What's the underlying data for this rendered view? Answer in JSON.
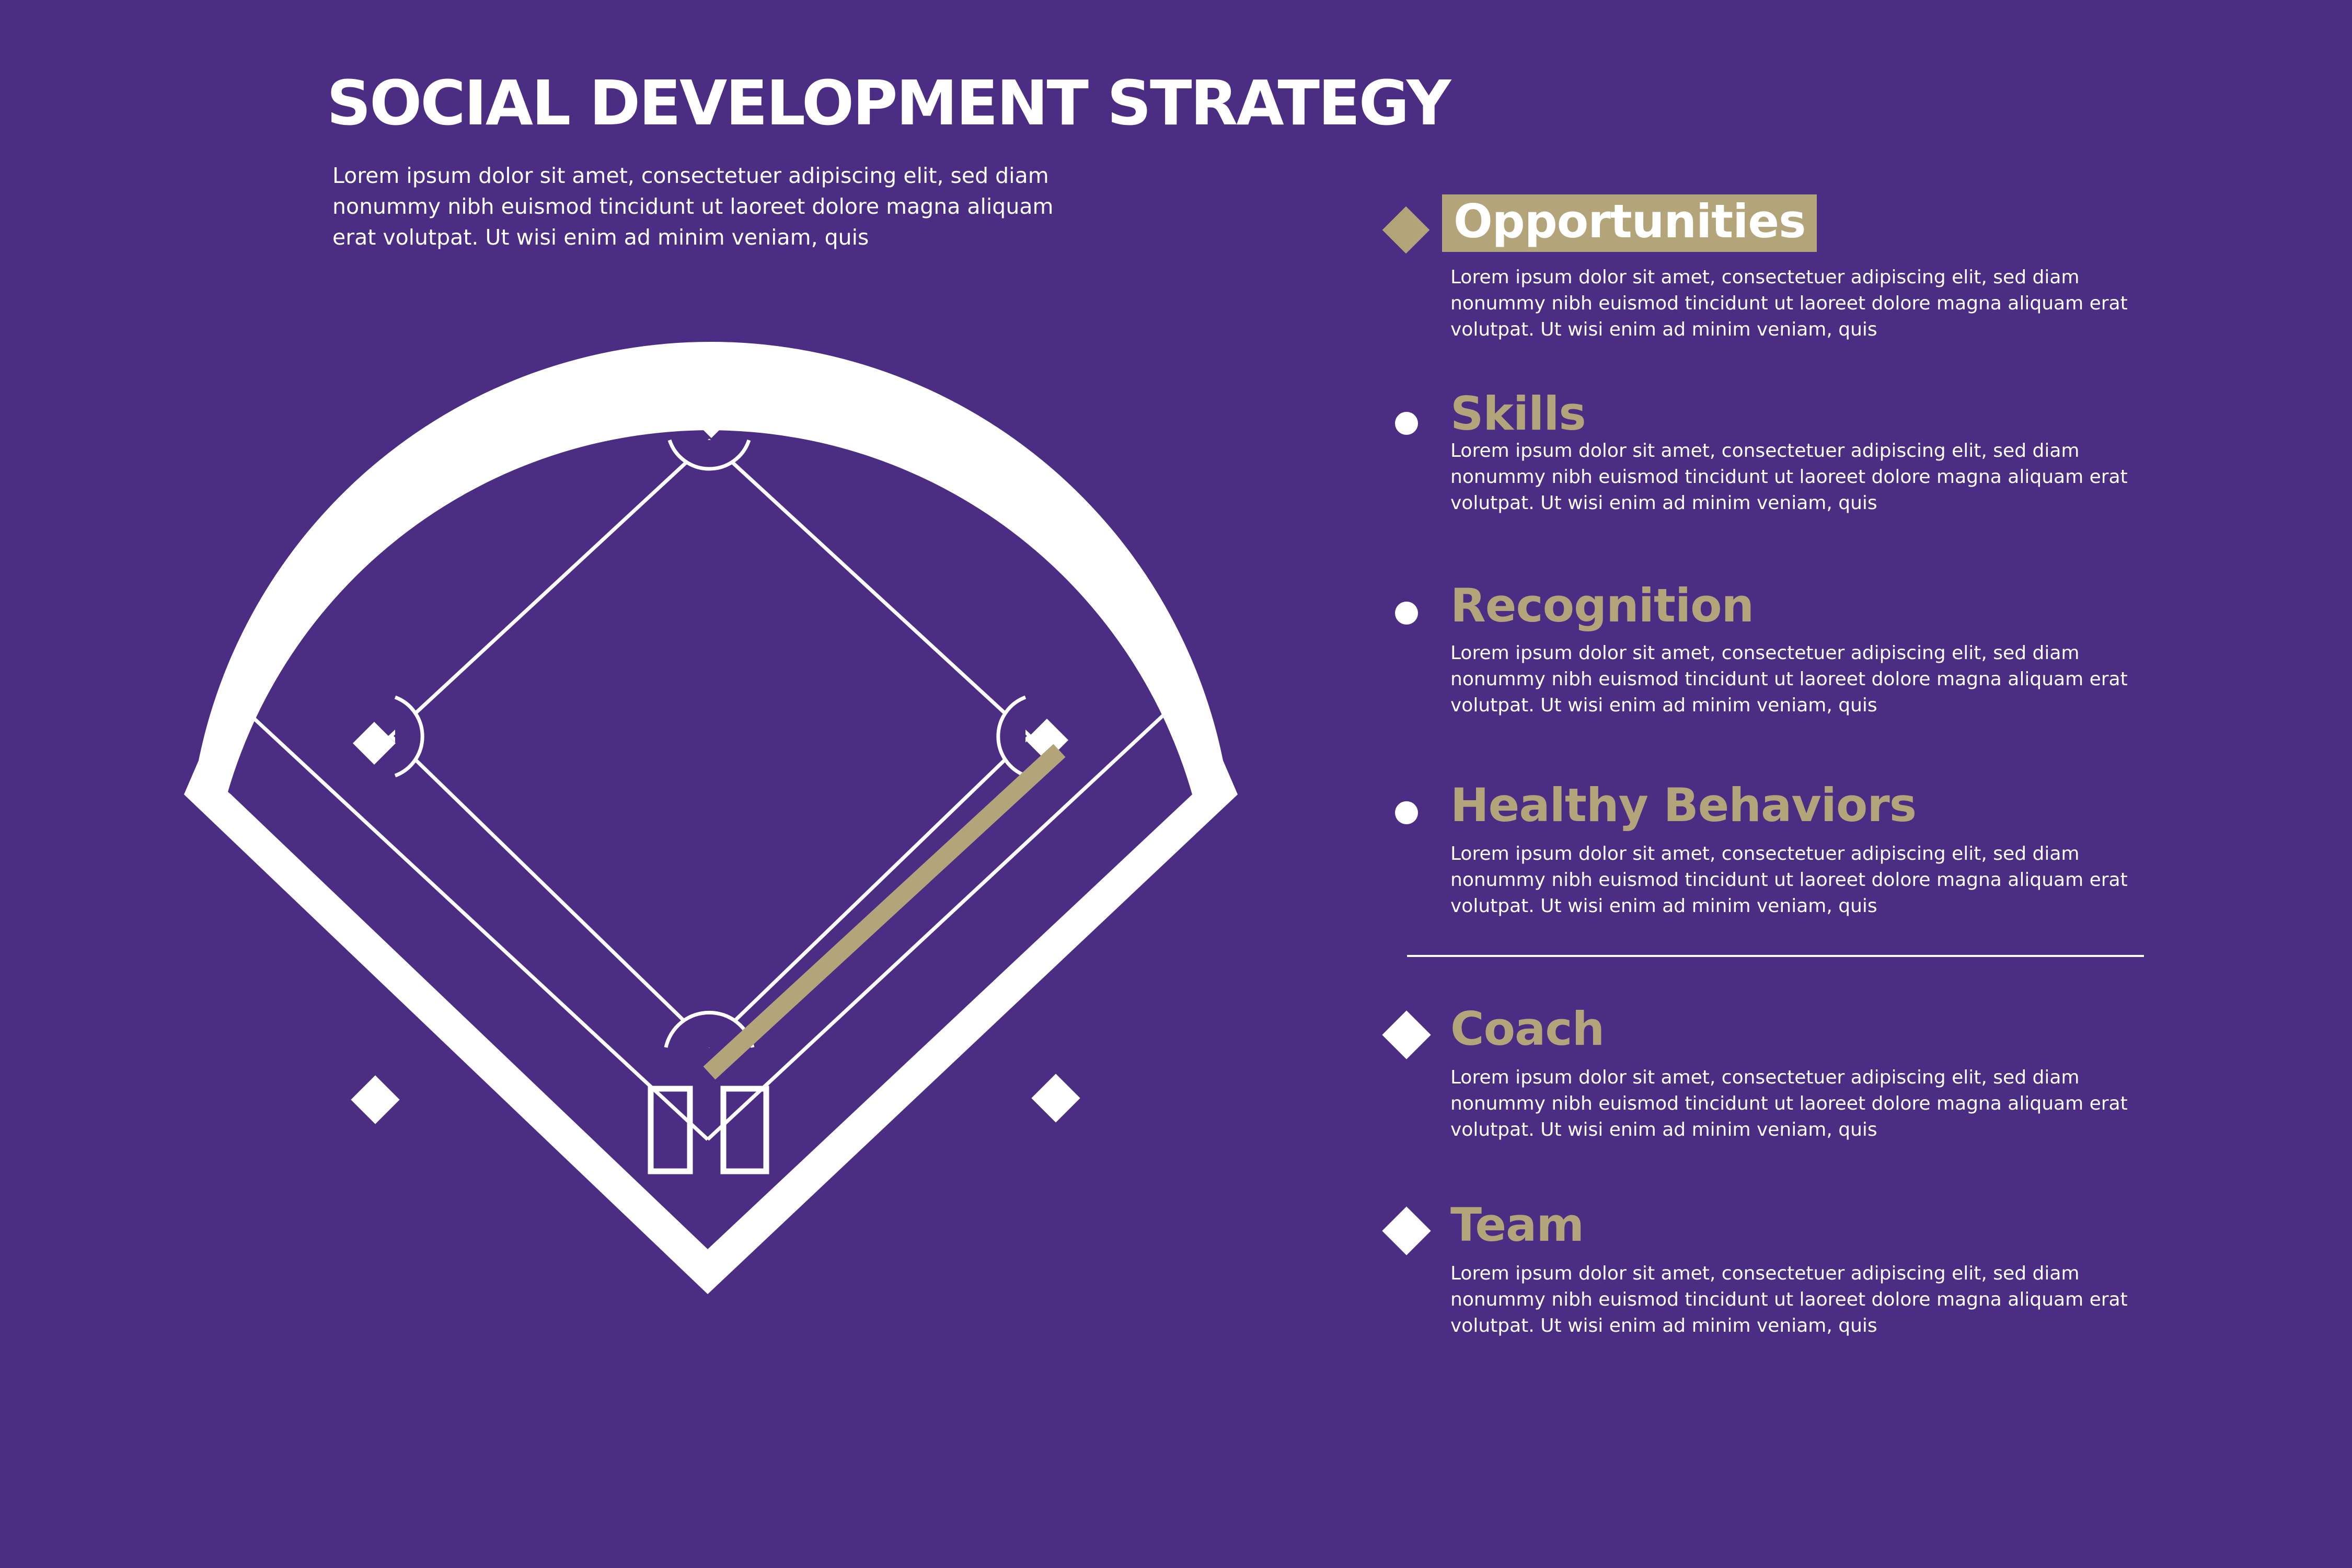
{
  "title": "SOCIAL DEVELOPMENT STRATEGY",
  "intro": "Lorem ipsum dolor sit amet, consectetuer adipiscing elit, sed diam nonummy nibh euismod tincidunt ut laoreet dolore magna aliquam erat volutpat. Ut wisi enim ad minim veniam, quis",
  "items": [
    {
      "heading": "Opportunities",
      "marker": "gold-diamond-icon",
      "description": "Lorem ipsum dolor sit amet, consectetuer adipiscing elit, sed diam nonummy nibh euismod tincidunt ut laoreet dolore magna aliquam erat volutpat. Ut wisi enim ad minim veniam, quis"
    },
    {
      "heading": "Skills",
      "marker": "dot-icon",
      "description": "Lorem ipsum dolor sit amet, consectetuer adipiscing elit, sed diam nonummy nibh euismod tincidunt ut laoreet dolore magna aliquam erat volutpat. Ut wisi enim ad minim veniam, quis"
    },
    {
      "heading": "Recognition",
      "marker": "dot-icon",
      "description": "Lorem ipsum dolor sit amet, consectetuer adipiscing elit, sed diam nonummy nibh euismod tincidunt ut laoreet dolore magna aliquam erat volutpat. Ut wisi enim ad minim veniam, quis"
    },
    {
      "heading": "Healthy Behaviors",
      "marker": "dot-icon",
      "description": "Lorem ipsum dolor sit amet, consectetuer adipiscing elit, sed diam nonummy nibh euismod tincidunt ut laoreet dolore magna aliquam erat volutpat. Ut wisi enim ad minim veniam, quis"
    },
    {
      "heading": "Coach",
      "marker": "diamond-icon",
      "description": "Lorem ipsum dolor sit amet, consectetuer adipiscing elit, sed diam nonummy nibh euismod tincidunt ut laoreet dolore magna aliquam erat volutpat. Ut wisi enim ad minim veniam, quis"
    },
    {
      "heading": "Team",
      "marker": "diamond-icon",
      "description": "Lorem ipsum dolor sit amet, consectetuer adipiscing elit, sed diam nonummy nibh euismod tincidunt ut laoreet dolore magna aliquam erat volutpat. Ut wisi enim ad minim veniam, quis"
    }
  ],
  "colors": {
    "background": "#4b2d84",
    "accent": "#b3a47a",
    "foreground": "#ffffff"
  }
}
